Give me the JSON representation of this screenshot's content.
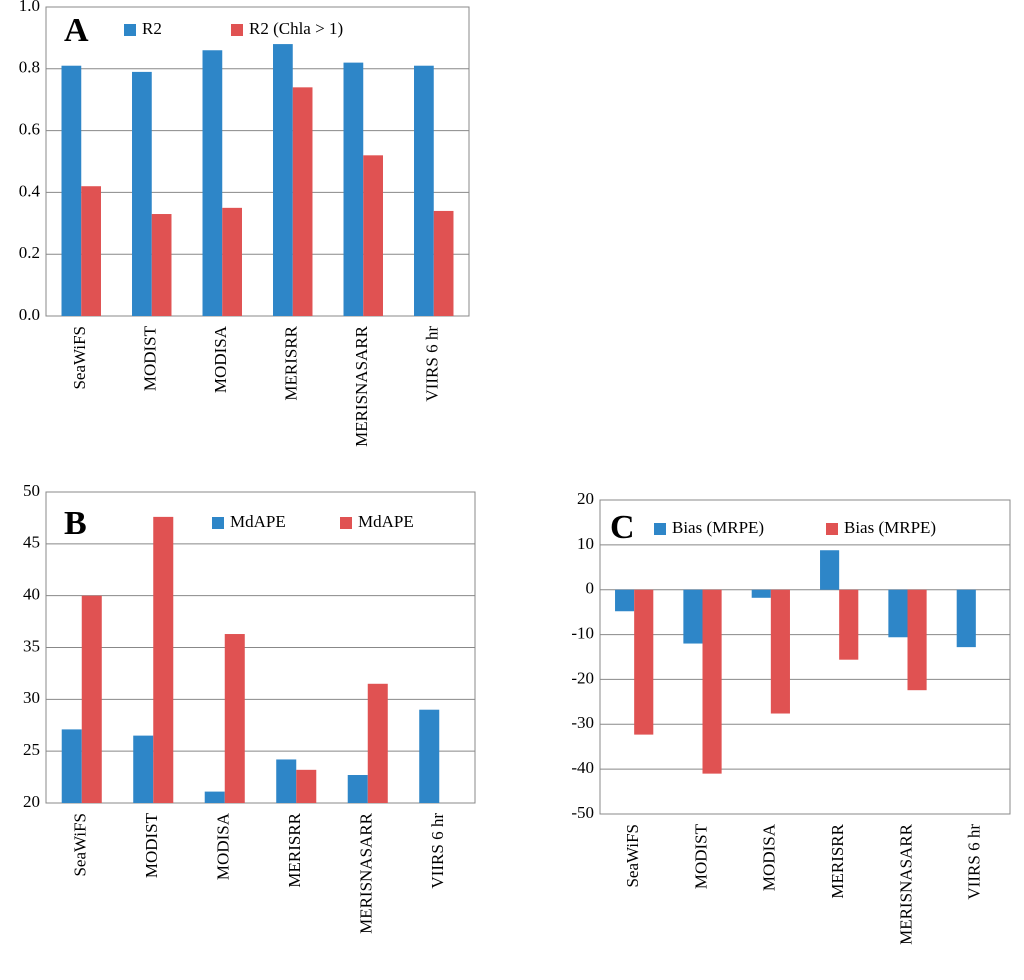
{
  "chart_data": [
    {
      "type": "bar",
      "annotation": "A",
      "categories": [
        "SeaWiFS",
        "MODIST",
        "MODISA",
        "MERISRR",
        "MERISNASARR",
        "VIIRS 6 hr"
      ],
      "series": [
        {
          "name": "R2",
          "color": "#2e86c8",
          "values": [
            0.81,
            0.79,
            0.86,
            0.88,
            0.82,
            0.81
          ]
        },
        {
          "name": "R2  (Chla > 1)",
          "color": "#e05252",
          "values": [
            0.42,
            0.33,
            0.35,
            0.74,
            0.52,
            0.34
          ]
        }
      ],
      "ylim": [
        0,
        1
      ],
      "yticks": [
        {
          "value": 0,
          "label": "0.0"
        },
        0.2,
        0.4,
        0.6,
        0.8,
        {
          "value": 1,
          "label": "1.0"
        }
      ],
      "grid": true
    },
    {
      "type": "bar",
      "annotation": "B",
      "categories": [
        "SeaWiFS",
        "MODIST",
        "MODISA",
        "MERISRR",
        "MERISNASARR",
        "VIIRS 6 hr"
      ],
      "series": [
        {
          "name": "MdAPE",
          "color": "#2e86c8",
          "values": [
            27.1,
            26.5,
            21.1,
            24.2,
            22.7,
            29.0
          ]
        },
        {
          "name": "MdAPE",
          "color": "#e05252",
          "values": [
            40.0,
            47.6,
            36.3,
            23.2,
            31.5,
            null
          ]
        }
      ],
      "ylim": [
        20,
        50
      ],
      "yticks": [
        20,
        25,
        30,
        35,
        40,
        45,
        50
      ],
      "grid": true
    },
    {
      "type": "bar",
      "annotation": "C",
      "categories": [
        "SeaWiFS",
        "MODIST",
        "MODISA",
        "MERISRR",
        "MERISNASARR",
        "VIIRS 6 hr"
      ],
      "series": [
        {
          "name": "Bias (MRPE)",
          "color": "#2e86c8",
          "values": [
            -4.8,
            -12,
            -1.8,
            8.8,
            -10.6,
            -12.8
          ]
        },
        {
          "name": "Bias (MRPE)",
          "color": "#e05252",
          "values": [
            -32.3,
            -41,
            -27.6,
            -15.6,
            -22.4,
            null
          ]
        }
      ],
      "ylim": [
        -50,
        20
      ],
      "yticks": [
        -50,
        -40,
        -30,
        -20,
        -10,
        0,
        10,
        20
      ],
      "grid": true
    }
  ]
}
